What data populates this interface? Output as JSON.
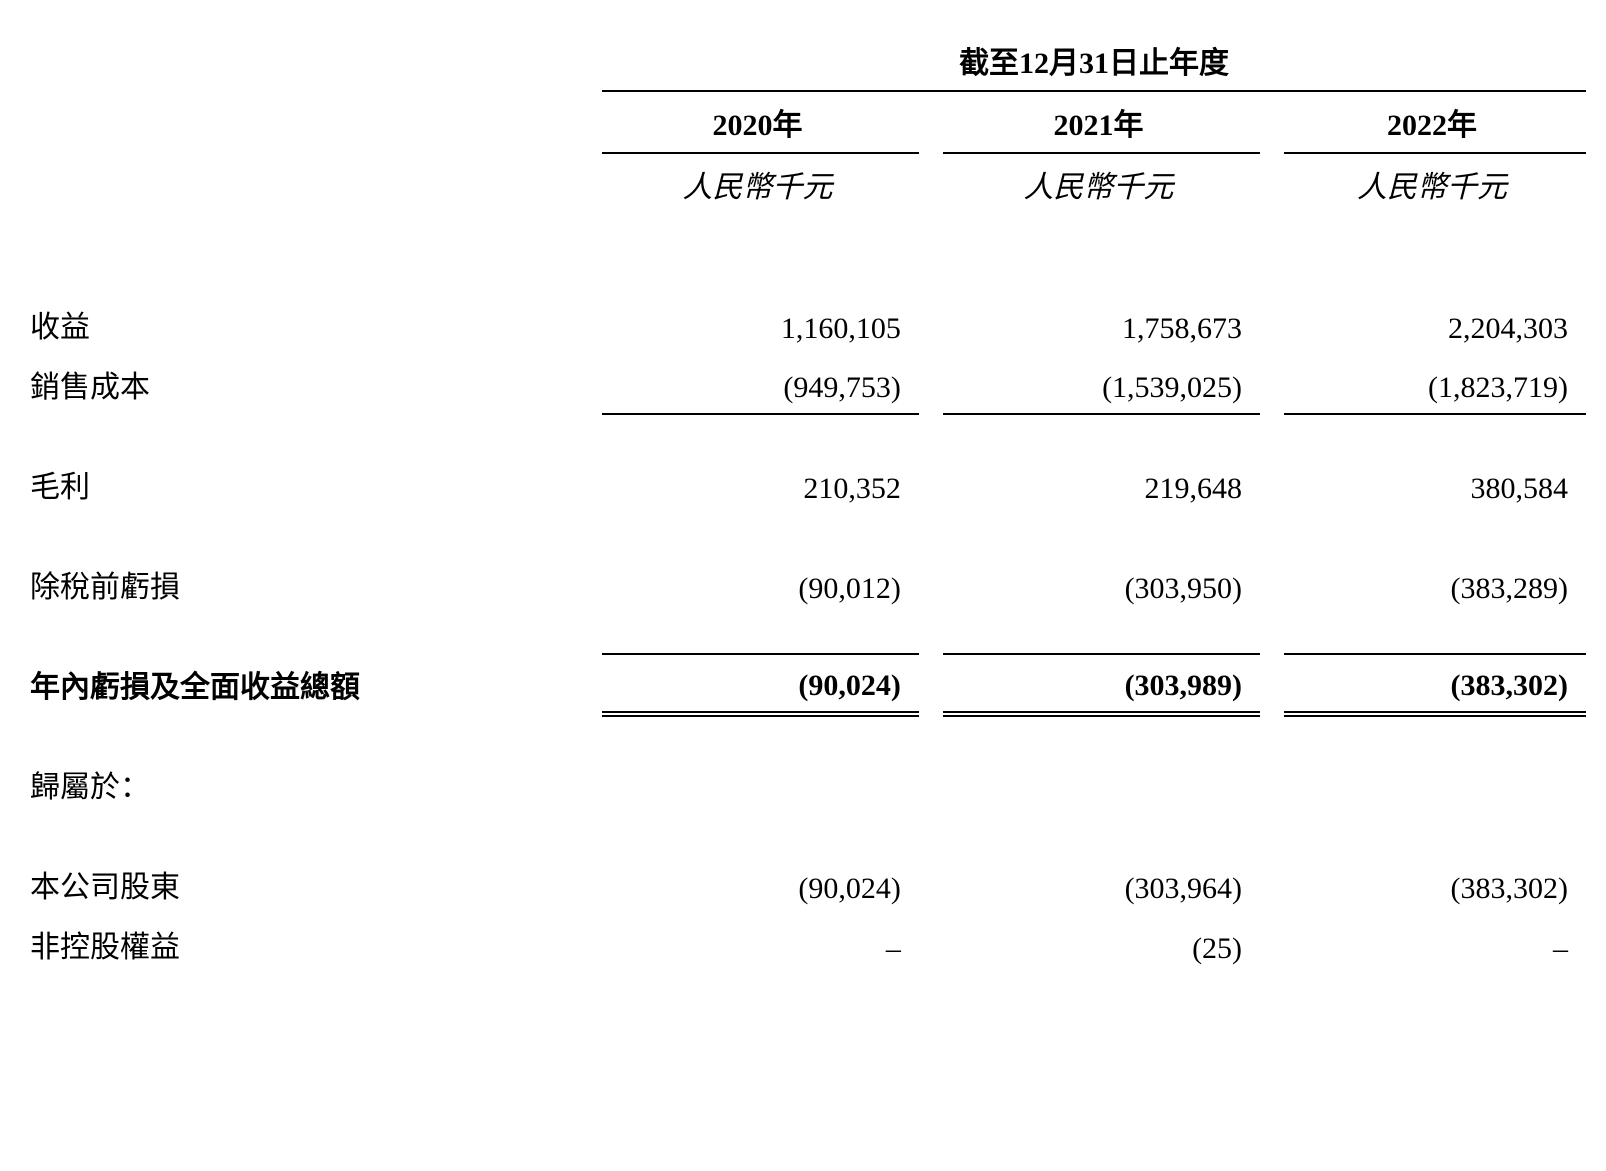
{
  "table": {
    "header_title": "截至12月31日止年度",
    "years": [
      "2020年",
      "2021年",
      "2022年"
    ],
    "unit": "人民幣千元",
    "rows": {
      "revenue": {
        "label": "收益",
        "values": [
          "1,160,105",
          "1,758,673",
          "2,204,303"
        ]
      },
      "cost_of_sales": {
        "label": "銷售成本",
        "values": [
          "(949,753)",
          "(1,539,025)",
          "(1,823,719)"
        ]
      },
      "gross_profit": {
        "label": "毛利",
        "values": [
          "210,352",
          "219,648",
          "380,584"
        ]
      },
      "loss_before_tax": {
        "label": "除稅前虧損",
        "values": [
          "(90,012)",
          "(303,950)",
          "(383,289)"
        ]
      },
      "total_loss": {
        "label": "年內虧損及全面收益總額",
        "values": [
          "(90,024)",
          "(303,989)",
          "(383,302)"
        ]
      },
      "attributable_to": {
        "label": "歸屬於："
      },
      "shareholders": {
        "label": "本公司股東",
        "values": [
          "(90,024)",
          "(303,964)",
          "(383,302)"
        ]
      },
      "non_controlling": {
        "label": "非控股權益",
        "values": [
          "–",
          "(25)",
          "–"
        ]
      }
    },
    "styling": {
      "text_color": "#000000",
      "background_color": "#ffffff",
      "border_color": "#000000",
      "font_size": 30,
      "col_widths": [
        "38%",
        "20.5%",
        "20.5%",
        "20.5%"
      ]
    }
  }
}
